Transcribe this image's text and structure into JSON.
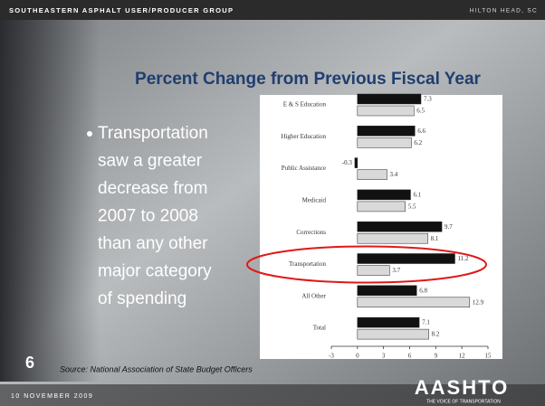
{
  "header": {
    "left": "SOUTHEASTERN ASPHALT USER/PRODUCER GROUP",
    "right": "HILTON HEAD, SC"
  },
  "title": "Percent Change from Previous Fiscal Year",
  "bullet": [
    "Transportation",
    "saw a greater",
    "decrease from",
    "2007 to 2008",
    "than any other",
    "major category",
    "of spending"
  ],
  "slide_number": "6",
  "source": "Source: National Association of State Budget Officers",
  "footer": {
    "date": "10 NOVEMBER 2009"
  },
  "logo": {
    "text": "AASHTO",
    "tagline": "THE VOICE OF TRANSPORTATION"
  },
  "chart_data": {
    "type": "hbar",
    "categories": [
      "E & S Education",
      "Higher Education",
      "Public Assistance",
      "Medicaid",
      "Corrections",
      "Transportation",
      "All Other",
      "Total"
    ],
    "series": [
      {
        "color": "#111111",
        "values": [
          7.3,
          6.6,
          -0.3,
          6.1,
          9.7,
          11.2,
          6.8,
          7.1
        ]
      },
      {
        "color": "#d9d9d9",
        "values": [
          6.5,
          6.2,
          3.4,
          5.5,
          8.1,
          3.7,
          12.9,
          8.2
        ]
      }
    ],
    "xlim": [
      -3,
      15
    ],
    "xticks": [
      -3,
      0,
      3,
      6,
      9,
      12,
      15
    ],
    "highlight": "Transportation",
    "highlight_color": "#e01818"
  }
}
